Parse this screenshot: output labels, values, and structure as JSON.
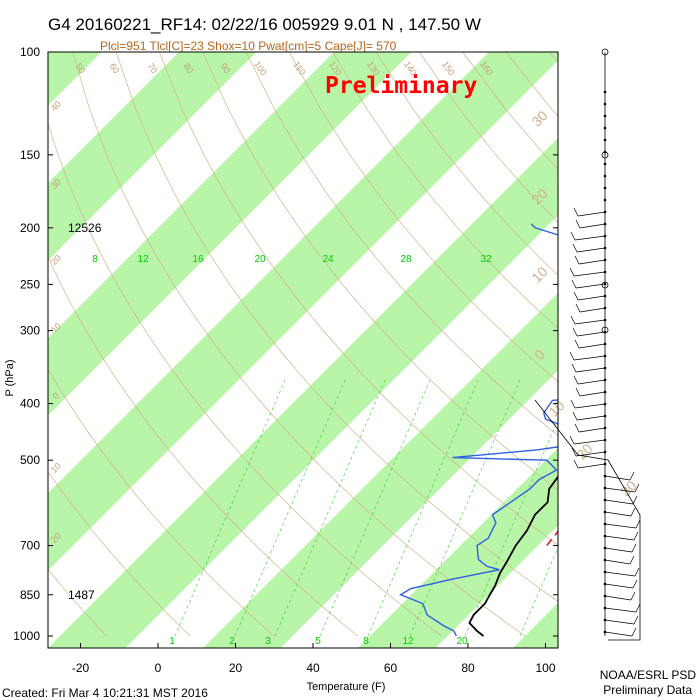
{
  "title": "G4 20160221_RF14: 02/22/16 005929   9.01 N , 147.50 W",
  "subtitle": "Plcl=951 Tlcl[C]=23 Shox=10 Pwat[cm]=5 Cape[J]= 570",
  "watermark": "Preliminary",
  "footer_left": "Created: Fri Mar  4 10:21:31 MST 2016",
  "footer_right_1": "NOAA/ESRL PSD",
  "footer_right_2": "Preliminary Data",
  "height_labels": [
    {
      "text": "12526",
      "p": 200
    },
    {
      "text": "1487",
      "p": 850
    }
  ],
  "mixing_ratio_labels_top": [
    "8",
    "12",
    "16",
    "20",
    "24",
    "28",
    "32"
  ],
  "mixing_ratio_labels_bottom": [
    "1",
    "2",
    "3",
    "5",
    "8",
    "12",
    "20"
  ],
  "dry_adiabat_labels": [
    "50",
    "60",
    "70",
    "80",
    "90",
    "100",
    "110",
    "120",
    "130",
    "140",
    "150",
    "160"
  ],
  "theta_labels_right": [
    "30",
    "20",
    "10",
    "0",
    "10",
    "20",
    "30"
  ],
  "theta_labels_left": [
    "40",
    "30",
    "20",
    "10",
    "0",
    "10",
    "20"
  ],
  "colors": {
    "band": "#b8f5a8",
    "temperature": "#000000",
    "dewpoint": "#3060e0",
    "parcel": "#dd2222",
    "mixing_ratio": "#33cc33",
    "dry_adiabat": "#d2b48c"
  },
  "chart_data": {
    "type": "line",
    "title": "G4 20160221_RF14: 02/22/16 005929   9.01 N , 147.50 W",
    "xlabel": "Temperature (F)",
    "ylabel": "P (hPa)",
    "x_ticks": [
      -20,
      0,
      20,
      40,
      60,
      80,
      100
    ],
    "y_ticks": [
      100,
      150,
      200,
      250,
      300,
      400,
      500,
      700,
      850,
      1000
    ],
    "y_scale": "log",
    "xlim": [
      -28,
      110
    ],
    "ylim": [
      1000,
      100
    ],
    "series": [
      {
        "role": "temperature",
        "points": [
          [
            84,
            1000
          ],
          [
            81,
            980
          ],
          [
            77,
            950
          ],
          [
            76,
            920
          ],
          [
            76,
            880
          ],
          [
            75,
            850
          ],
          [
            74,
            820
          ],
          [
            72,
            780
          ],
          [
            71,
            750
          ],
          [
            69,
            700
          ],
          [
            68,
            660
          ],
          [
            66,
            620
          ],
          [
            66,
            590
          ],
          [
            63,
            560
          ],
          [
            62,
            530
          ],
          [
            61,
            500
          ],
          [
            60,
            470
          ],
          [
            58,
            450
          ],
          [
            57,
            430
          ],
          [
            53,
            410
          ],
          [
            51,
            390
          ],
          [
            50,
            370
          ],
          [
            48,
            350
          ],
          [
            46,
            330
          ],
          [
            45,
            310
          ],
          [
            43,
            290
          ],
          [
            39,
            260
          ],
          [
            36,
            230
          ],
          [
            32,
            210
          ],
          [
            28,
            190
          ],
          [
            22,
            175
          ]
        ]
      },
      {
        "role": "dewpoint",
        "points": [
          [
            77,
            1000
          ],
          [
            75,
            980
          ],
          [
            71,
            960
          ],
          [
            64,
            920
          ],
          [
            60,
            880
          ],
          [
            52,
            850
          ],
          [
            53,
            830
          ],
          [
            61,
            800
          ],
          [
            71,
            770
          ],
          [
            67,
            760
          ],
          [
            63,
            740
          ],
          [
            61,
            720
          ],
          [
            59,
            700
          ],
          [
            60,
            680
          ],
          [
            59,
            660
          ],
          [
            58,
            640
          ],
          [
            55,
            620
          ],
          [
            56,
            600
          ],
          [
            57,
            580
          ],
          [
            58,
            560
          ],
          [
            58,
            540
          ],
          [
            60,
            520
          ],
          [
            55,
            500
          ],
          [
            30,
            495
          ],
          [
            50,
            480
          ],
          [
            58,
            470
          ],
          [
            58,
            445
          ],
          [
            52,
            440
          ],
          [
            44,
            425
          ],
          [
            42,
            415
          ],
          [
            41,
            395
          ],
          [
            46,
            392
          ],
          [
            44,
            388
          ],
          [
            52,
            380
          ],
          [
            51,
            365
          ],
          [
            52,
            340
          ],
          [
            49,
            320
          ],
          [
            44,
            300
          ],
          [
            38,
            270
          ],
          [
            30,
            250
          ],
          [
            15,
            230
          ],
          [
            8,
            212
          ],
          [
            -8,
            200
          ],
          [
            -10,
            197
          ]
        ]
      },
      {
        "role": "parcel",
        "points": [
          [
            77,
            700
          ],
          [
            76,
            650
          ],
          [
            74,
            600
          ],
          [
            72,
            540
          ],
          [
            69,
            480
          ],
          [
            64,
            420
          ],
          [
            58,
            360
          ],
          [
            50,
            310
          ],
          [
            41,
            260
          ],
          [
            32,
            220
          ],
          [
            26,
            200
          ]
        ]
      }
    ]
  }
}
